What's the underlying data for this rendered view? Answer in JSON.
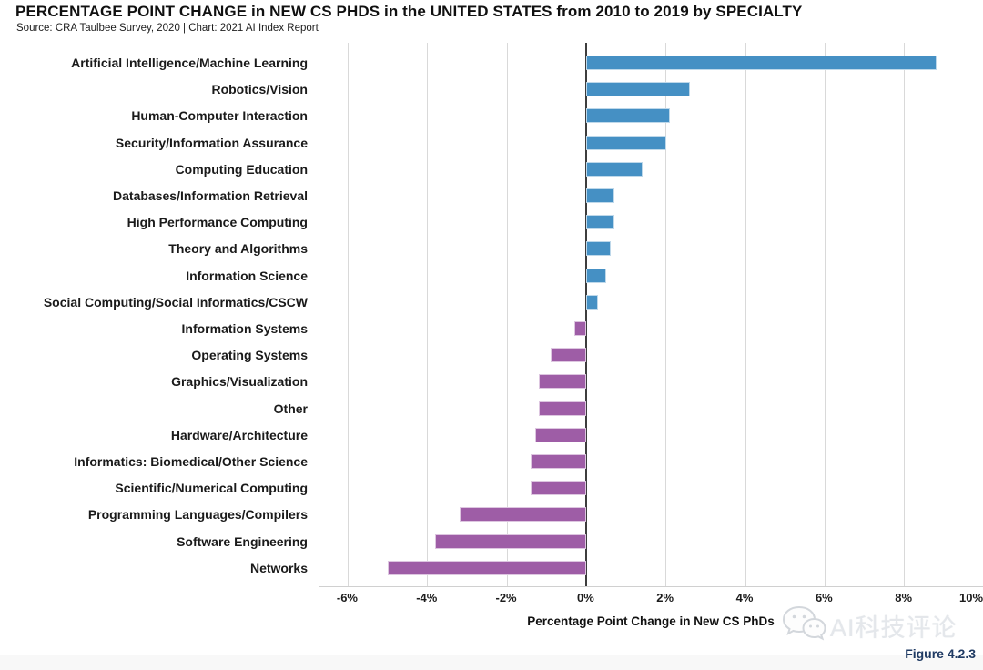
{
  "header": {
    "title": "PERCENTAGE POINT CHANGE in NEW CS PHDS in the UNITED STATES from 2010 to 2019 by SPECIALTY",
    "source": "Source: CRA Taulbee Survey, 2020 | Chart: 2021 AI Index Report"
  },
  "chart_data": {
    "type": "bar",
    "orientation": "horizontal",
    "title": "PERCENTAGE POINT CHANGE in NEW CS PHDS in the UNITED STATES from 2010 to 2019 by SPECIALTY",
    "categories": [
      "Artificial Intelligence/Machine Learning",
      "Robotics/Vision",
      "Human-Computer Interaction",
      "Security/Information Assurance",
      "Computing Education",
      "Databases/Information Retrieval",
      "High Performance Computing",
      "Theory and Algorithms",
      "Information Science",
      "Social Computing/Social Informatics/CSCW",
      "Information Systems",
      "Operating Systems",
      "Graphics/Visualization",
      "Other",
      "Hardware/Architecture",
      "Informatics: Biomedical/Other Science",
      "Scientific/Numerical Computing",
      "Programming Languages/Compilers",
      "Software Engineering",
      "Networks"
    ],
    "values": [
      8.8,
      2.6,
      2.1,
      2.0,
      1.4,
      0.7,
      0.7,
      0.6,
      0.5,
      0.3,
      -0.3,
      -0.9,
      -1.2,
      -1.2,
      -1.3,
      -1.4,
      -1.4,
      -3.2,
      -3.8,
      -5.0
    ],
    "xlabel": "Percentage Point Change in New CS PhDs",
    "x_ticks": [
      -6,
      -4,
      -2,
      0,
      2,
      4,
      6,
      8,
      10
    ],
    "x_tick_labels": [
      "-6%",
      "-4%",
      "-2%",
      "0%",
      "2%",
      "4%",
      "6%",
      "8%",
      "10%"
    ],
    "xlim": [
      -6.72,
      10
    ],
    "grid": true,
    "legend": "none",
    "positive_color": "#4590C4",
    "negative_color": "#9E5DA6"
  },
  "watermark": {
    "text": "AI科技评论",
    "icon": "wechat-logo"
  },
  "figure_label": "Figure 4.2.3"
}
